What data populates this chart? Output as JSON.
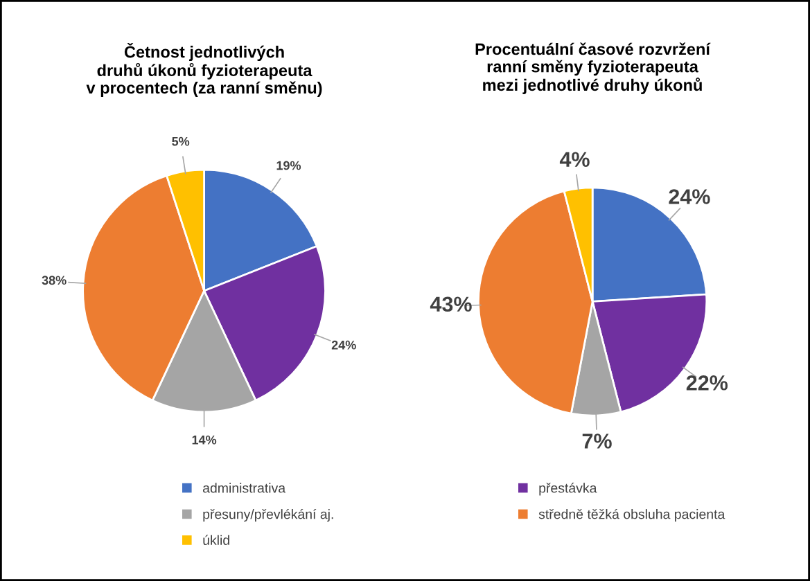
{
  "chart_data": [
    {
      "type": "pie",
      "title": "Četnost jednotlivých\ndruhů úkonů fyzioterapeuta\nv procentech (za ranní směnu)",
      "categories": [
        "administrativa",
        "přestávka",
        "přesuny/převlékání aj.",
        "středně těžká obsluha pacienta",
        "úklid"
      ],
      "values": [
        19,
        24,
        14,
        38,
        5
      ],
      "value_labels": [
        "19%",
        "24%",
        "14%",
        "38%",
        "5%"
      ],
      "colors": [
        "#4472c4",
        "#7030a0",
        "#a5a5a5",
        "#ed7d31",
        "#ffc000"
      ],
      "legend": "bottom"
    },
    {
      "type": "pie",
      "title": "Procentuální časové rozvržení\nranní směny fyzioterapeuta\nmezi jednotlivé druhy úkonů",
      "categories": [
        null,
        null,
        null,
        null,
        null
      ],
      "values": [
        24,
        22,
        7,
        43,
        4
      ],
      "value_labels": [
        "24%",
        "22%",
        "7%",
        "43%",
        "4%"
      ],
      "colors": [
        "#4472c4",
        "#7030a0",
        "#a5a5a5",
        "#ed7d31",
        "#ffc000"
      ]
    }
  ]
}
